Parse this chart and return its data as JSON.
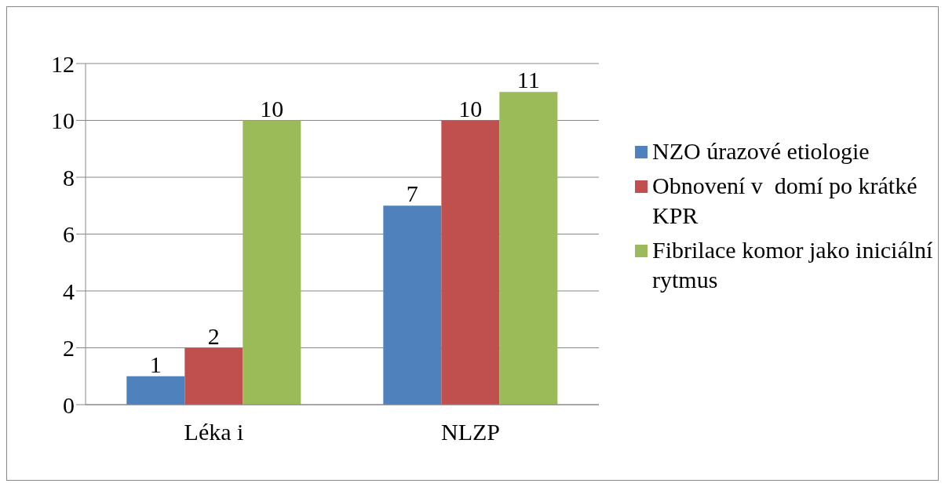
{
  "chart_data": {
    "type": "bar",
    "categories": [
      "Léka i",
      "NLZP"
    ],
    "series": [
      {
        "name": "NZO úrazové etiologie",
        "color": "#4f81bd",
        "values": [
          1,
          7
        ]
      },
      {
        "name": "Obnovení v  domí po krátké KPR",
        "color": "#c0504d",
        "values": [
          2,
          10
        ]
      },
      {
        "name": "Fibrilace komor jako iniciální rytmus",
        "color": "#9bbb59",
        "values": [
          10,
          11
        ]
      }
    ],
    "ylim": [
      0,
      12
    ],
    "yticks": [
      0,
      2,
      4,
      6,
      8,
      10,
      12
    ],
    "grid": "y",
    "legend": "right",
    "data_labels": true
  }
}
